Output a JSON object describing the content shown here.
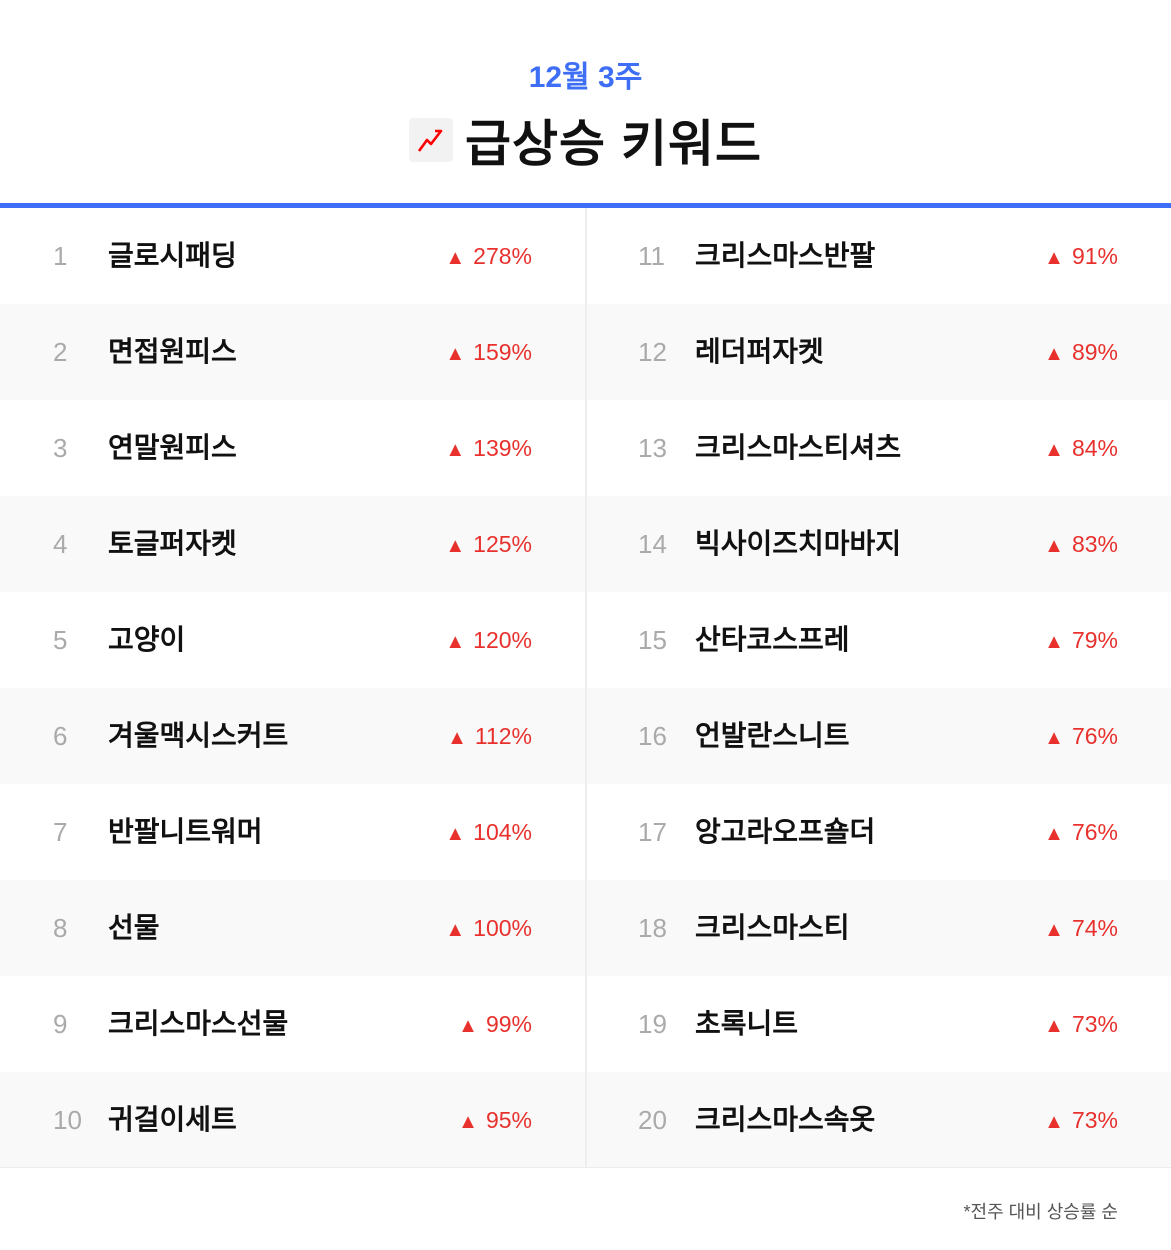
{
  "header": {
    "subtitle": "12월 3주",
    "title": "급상승 키워드",
    "icon": "trending-up-icon",
    "accent": "#3d6ef5",
    "up_color": "#e8312d"
  },
  "left": [
    {
      "rank": "1",
      "name": "글로시패딩",
      "change": "278%"
    },
    {
      "rank": "2",
      "name": "면접원피스",
      "change": "159%"
    },
    {
      "rank": "3",
      "name": "연말원피스",
      "change": "139%"
    },
    {
      "rank": "4",
      "name": "토글퍼자켓",
      "change": "125%"
    },
    {
      "rank": "5",
      "name": "고양이",
      "change": "120%"
    },
    {
      "rank": "6",
      "name": "겨울맥시스커트",
      "change": "112%"
    },
    {
      "rank": "7",
      "name": "반팔니트워머",
      "change": "104%"
    },
    {
      "rank": "8",
      "name": "선물",
      "change": "100%"
    },
    {
      "rank": "9",
      "name": "크리스마스선물",
      "change": "99%"
    },
    {
      "rank": "10",
      "name": "귀걸이세트",
      "change": "95%"
    }
  ],
  "right": [
    {
      "rank": "11",
      "name": "크리스마스반팔",
      "change": "91%"
    },
    {
      "rank": "12",
      "name": "레더퍼자켓",
      "change": "89%"
    },
    {
      "rank": "13",
      "name": "크리스마스티셔츠",
      "change": "84%"
    },
    {
      "rank": "14",
      "name": "빅사이즈치마바지",
      "change": "83%"
    },
    {
      "rank": "15",
      "name": "산타코스프레",
      "change": "79%"
    },
    {
      "rank": "16",
      "name": "언발란스니트",
      "change": "76%"
    },
    {
      "rank": "17",
      "name": "앙고라오프숄더",
      "change": "76%"
    },
    {
      "rank": "18",
      "name": "크리스마스티",
      "change": "74%"
    },
    {
      "rank": "19",
      "name": "초록니트",
      "change": "73%"
    },
    {
      "rank": "20",
      "name": "크리스마스속옷",
      "change": "73%"
    }
  ],
  "footer": {
    "note": "*전주 대비 상승률 순"
  }
}
